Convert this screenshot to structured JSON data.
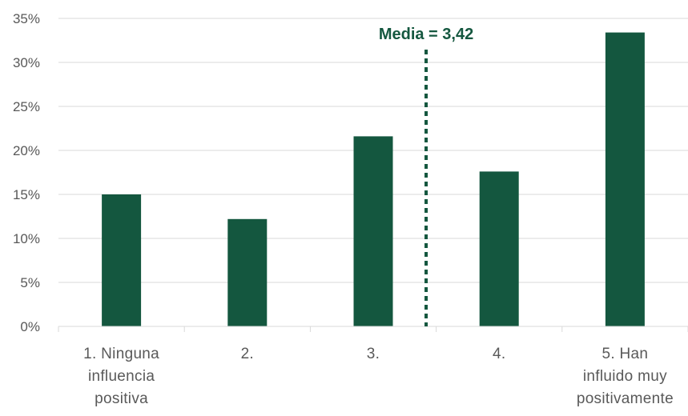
{
  "chart_data": {
    "type": "bar",
    "title": "",
    "xlabel": "",
    "ylabel": "",
    "categories": [
      [
        "1. Ninguna",
        "influencia",
        "positiva"
      ],
      [
        "2."
      ],
      [
        "3."
      ],
      [
        "4."
      ],
      [
        "5. Han",
        "influido muy",
        "positivamente"
      ]
    ],
    "values": [
      15.0,
      12.2,
      21.6,
      17.6,
      33.4
    ],
    "ylim": [
      0,
      35
    ],
    "yticks": [
      0,
      5,
      10,
      15,
      20,
      25,
      30,
      35
    ],
    "ytick_labels": [
      "0%",
      "5%",
      "10%",
      "15%",
      "20%",
      "25%",
      "30%",
      "35%"
    ],
    "grid": true,
    "legend": "none",
    "bar_color": "#14573f",
    "annotation": {
      "text": "Media = 3,42",
      "x_value": 3.42,
      "style": "dotted vertical line",
      "color": "#14573f"
    }
  }
}
